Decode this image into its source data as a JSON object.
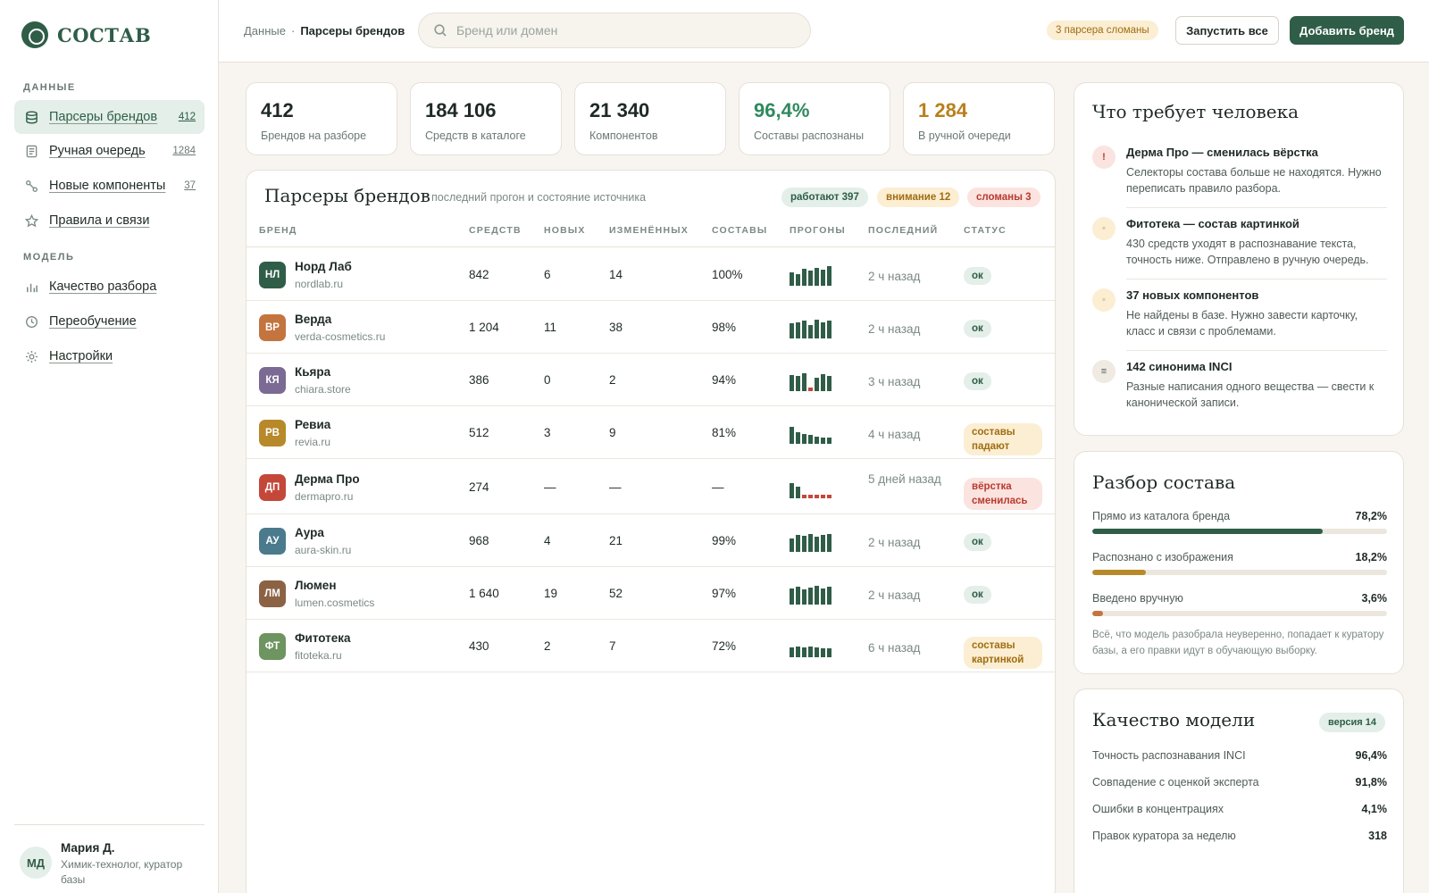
{
  "app": {
    "logo": "СОСТАВ"
  },
  "sidebar": {
    "section_data": "ДАННЫЕ",
    "section_model": "МОДЕЛЬ",
    "items": [
      {
        "label": "Парсеры брендов",
        "count": "412",
        "icon": "database-icon"
      },
      {
        "label": "Ручная очередь",
        "count": "1284",
        "icon": "document-icon"
      },
      {
        "label": "Новые компоненты",
        "count": "37",
        "icon": "molecule-icon"
      },
      {
        "label": "Правила и связи",
        "icon": "star-icon"
      },
      {
        "label": "Качество разбора",
        "icon": "bar-chart-icon"
      },
      {
        "label": "Переобучение",
        "icon": "clock-icon"
      },
      {
        "label": "Настройки",
        "icon": "gear-icon"
      }
    ],
    "user": {
      "initials": "МД",
      "name": "Мария Д.",
      "role": "Химик-технолог, куратор базы"
    }
  },
  "header": {
    "crumb_root": "Данные",
    "crumb_sep": "·",
    "crumb_current": "Парсеры брендов",
    "search_placeholder": "Бренд или домен",
    "broken_badge": "3 парсера сломаны",
    "run_all": "Запустить все",
    "add_brand": "Добавить бренд"
  },
  "stats": [
    {
      "value": "412",
      "label": "Брендов на разборе",
      "color": "#1f2a24"
    },
    {
      "value": "184 106",
      "label": "Средств в каталоге",
      "color": "#1f2a24"
    },
    {
      "value": "21 340",
      "label": "Компонентов",
      "color": "#1f2a24"
    },
    {
      "value": "96,4%",
      "label": "Составы распознаны",
      "color": "#2f8a5e"
    },
    {
      "value": "1 284",
      "label": "В ручной очереди",
      "color": "#b8801c"
    }
  ],
  "parsers": {
    "title": "Парсеры брендов",
    "subtitle": "последний прогон и состояние источника",
    "pill_ok": "работают 397",
    "pill_warn": "внимание 12",
    "pill_bad": "сломаны 3",
    "columns": [
      "БРЕНД",
      "СРЕДСТВ",
      "НОВЫХ",
      "ИЗМЕНЁННЫХ",
      "СОСТАВЫ",
      "ПРОГОНЫ",
      "ПОСЛЕДНИЙ",
      "СТАТУС"
    ],
    "rows": [
      {
        "initials": "НЛ",
        "avatar_color": "#2f5d48",
        "name": "Норд Лаб",
        "domain": "nordlab.ru",
        "products": "842",
        "new": "6",
        "changed": "14",
        "parsed": "100%",
        "runs": [
          0.7,
          0.6,
          0.85,
          0.75,
          0.9,
          0.8,
          1.0
        ],
        "last": "2 ч назад",
        "status": "ок",
        "status_type": "ok"
      },
      {
        "initials": "ВР",
        "avatar_color": "#c4743f",
        "name": "Верда",
        "domain": "verda-cosmetics.ru",
        "products": "1 204",
        "new": "11",
        "changed": "38",
        "parsed": "98%",
        "runs": [
          0.75,
          0.8,
          0.9,
          0.7,
          0.95,
          0.8,
          0.9
        ],
        "last": "2 ч назад",
        "status": "ок",
        "status_type": "ok"
      },
      {
        "initials": "КЯ",
        "avatar_color": "#7a6a94",
        "name": "Кьяра",
        "domain": "chiara.store",
        "products": "386",
        "new": "0",
        "changed": "2",
        "parsed": "94%",
        "runs": [
          0.8,
          0.75,
          0.9,
          0.2,
          0.7,
          0.85,
          0.75
        ],
        "last": "3 ч назад",
        "status": "ок",
        "status_type": "ok"
      },
      {
        "initials": "РВ",
        "avatar_color": "#b8892a",
        "name": "Ревиа",
        "domain": "revia.ru",
        "products": "512",
        "new": "3",
        "changed": "9",
        "parsed": "81%",
        "runs": [
          0.85,
          0.6,
          0.5,
          0.45,
          0.35,
          0.3,
          0.3
        ],
        "last": "4 ч назад",
        "status": "составы падают",
        "status_type": "warn"
      },
      {
        "initials": "ДП",
        "avatar_color": "#c4473a",
        "name": "Дерма Про",
        "domain": "dermapro.ru",
        "products": "274",
        "new": "—",
        "changed": "—",
        "parsed": "—",
        "runs": [
          0.75,
          0.6,
          0.2,
          0.2,
          0.2,
          0.2,
          0.2
        ],
        "last": "5 дней назад",
        "status": "вёрстка сменилась",
        "status_type": "bad"
      },
      {
        "initials": "АУ",
        "avatar_color": "#4a7a8c",
        "name": "Аура",
        "domain": "aura-skin.ru",
        "products": "968",
        "new": "4",
        "changed": "21",
        "parsed": "99%",
        "runs": [
          0.7,
          0.85,
          0.8,
          0.9,
          0.75,
          0.85,
          0.9
        ],
        "last": "2 ч назад",
        "status": "ок",
        "status_type": "ok"
      },
      {
        "initials": "ЛМ",
        "avatar_color": "#8c6245",
        "name": "Люмен",
        "domain": "lumen.cosmetics",
        "products": "1 640",
        "new": "19",
        "changed": "52",
        "parsed": "97%",
        "runs": [
          0.8,
          0.9,
          0.75,
          0.85,
          0.95,
          0.8,
          0.9
        ],
        "last": "2 ч назад",
        "status": "ок",
        "status_type": "ok"
      },
      {
        "initials": "ФТ",
        "avatar_color": "#6e9460",
        "name": "Фитотека",
        "domain": "fitoteka.ru",
        "products": "430",
        "new": "2",
        "changed": "7",
        "parsed": "72%",
        "runs": [
          0.5,
          0.55,
          0.5,
          0.55,
          0.5,
          0.45,
          0.45
        ],
        "last": "6 ч назад",
        "status": "составы картинкой",
        "status_type": "warn"
      }
    ]
  },
  "attention": {
    "title": "Что требует человека",
    "tasks": [
      {
        "icon": "!",
        "icon_name": "alert-icon",
        "tone": "bad",
        "title": "Дерма Про — сменилась вёрстка",
        "desc": "Селекторы состава больше не находятся. Нужно переписать правило разбора."
      },
      {
        "icon": "◦",
        "icon_name": "dot-icon",
        "tone": "warn",
        "title": "Фитотека — состав картинкой",
        "desc": "430 средств уходят в распознавание текста, точность ниже. Отправлено в ручную очередь."
      },
      {
        "icon": "◦",
        "icon_name": "dot-icon",
        "tone": "warn",
        "title": "37 новых компонентов",
        "desc": "Не найдены в базе. Нужно завести карточку, класс и связи с проблемами."
      },
      {
        "icon": "≡",
        "icon_name": "list-icon",
        "tone": "neutral",
        "title": "142 синонима INCI",
        "desc": "Разные написания одного вещества — свести к канонической записи."
      }
    ]
  },
  "breakdown": {
    "title": "Разбор состава",
    "bars": [
      {
        "label": "Прямо из каталога бренда",
        "value": "78,2%",
        "fraction": 0.782,
        "color": "#2f5d48"
      },
      {
        "label": "Распознано с изображения",
        "value": "18,2%",
        "fraction": 0.182,
        "color": "#b8892a"
      },
      {
        "label": "Введено вручную",
        "value": "3,6%",
        "fraction": 0.036,
        "color": "#c4743f"
      }
    ],
    "note": "Всё, что модель разобрала неуверенно, попадает к куратору базы, а его правки идут в обучающую выборку."
  },
  "quality": {
    "title": "Качество модели",
    "version": "версия 14",
    "metrics": [
      {
        "label": "Точность распознавания INCI",
        "value": "96,4%"
      },
      {
        "label": "Совпадение с оценкой эксперта",
        "value": "91,8%"
      },
      {
        "label": "Ошибки в концентрациях",
        "value": "4,1%"
      },
      {
        "label": "Правок куратора за неделю",
        "value": "318"
      }
    ]
  }
}
